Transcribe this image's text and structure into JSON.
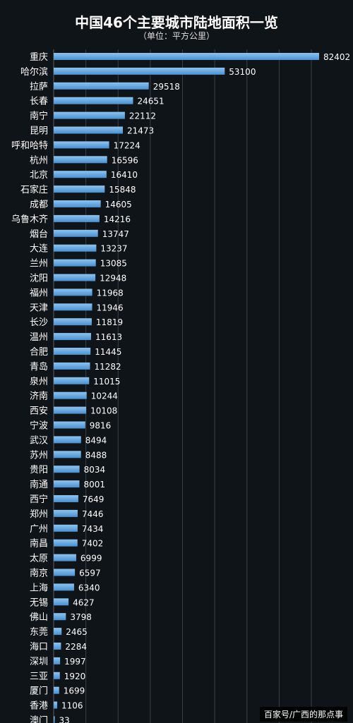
{
  "chart_data": {
    "type": "bar",
    "orientation": "horizontal",
    "title": "中国46个主要城市陆地面积一览",
    "subtitle": "（单位：平方公里）",
    "categories": [
      "重庆",
      "哈尔滨",
      "拉萨",
      "长春",
      "南宁",
      "昆明",
      "呼和哈特",
      "杭州",
      "北京",
      "石家庄",
      "成都",
      "乌鲁木齐",
      "烟台",
      "大连",
      "兰州",
      "沈阳",
      "福州",
      "天津",
      "长沙",
      "温州",
      "合肥",
      "青岛",
      "泉州",
      "济南",
      "西安",
      "宁波",
      "武汉",
      "苏州",
      "贵阳",
      "南通",
      "西宁",
      "郑州",
      "广州",
      "南昌",
      "太原",
      "南京",
      "上海",
      "无锡",
      "佛山",
      "东莞",
      "海口",
      "深圳",
      "三亚",
      "厦门",
      "香港",
      "澳门"
    ],
    "values": [
      82402,
      53100,
      29518,
      24651,
      22112,
      21473,
      17224,
      16596,
      16410,
      15848,
      14605,
      14216,
      13747,
      13237,
      13085,
      12948,
      11968,
      11946,
      11819,
      11613,
      11445,
      11282,
      11015,
      10244,
      10108,
      9816,
      8494,
      8488,
      8034,
      8001,
      7649,
      7446,
      7434,
      7402,
      6999,
      6597,
      6340,
      4627,
      3798,
      2465,
      2284,
      1997,
      1920,
      1699,
      1106,
      33
    ],
    "xlim": [
      0,
      85000
    ],
    "grid": true,
    "legend": "none",
    "bar_color": "#4a90d0",
    "bar_highlight": "#8cc4f0",
    "label_color": "#ffffff",
    "gridline_color": "#3a4048"
  },
  "watermark": "百家号/广西的那点事"
}
